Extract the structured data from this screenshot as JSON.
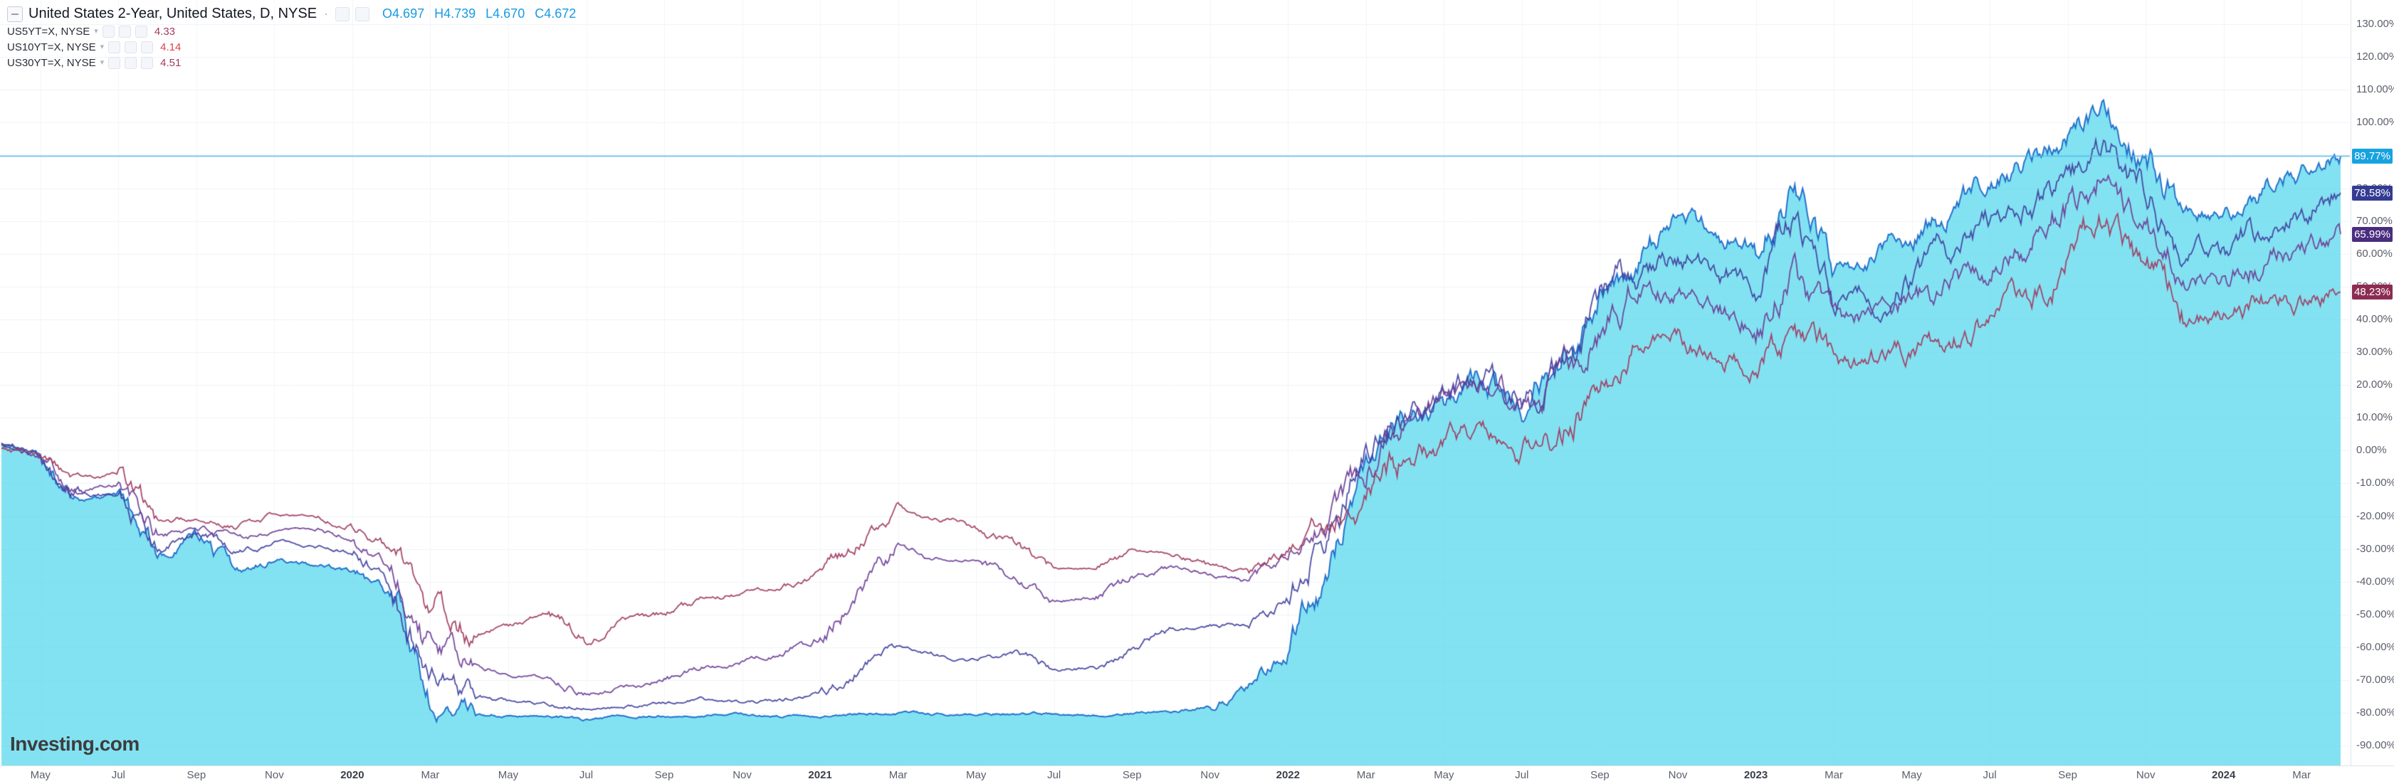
{
  "header": {
    "title": "United States 2-Year, United States, D, NYSE",
    "ohlc": {
      "o_label": "O",
      "o": "4.697",
      "h_label": "H",
      "h": "4.739",
      "l_label": "L",
      "l": "4.670",
      "c_label": "C",
      "c": "4.672"
    },
    "ohlc_color": "#189be4",
    "sub_series": [
      {
        "symbol": "US5YT=X, NYSE",
        "value": "4.33",
        "value_color": "#a23b5e"
      },
      {
        "symbol": "US10YT=X, NYSE",
        "value": "4.14",
        "value_color": "#e03e47"
      },
      {
        "symbol": "US30YT=X, NYSE",
        "value": "4.51",
        "value_color": "#a23b5e"
      }
    ]
  },
  "watermark": {
    "brand": "Investing",
    "tld": ".com"
  },
  "chart_data": {
    "type": "area+line",
    "title": "United States 2-Year, United States, D, NYSE — percent change",
    "x_interval": "monthly",
    "x_months": [
      "2019-04",
      "2019-05",
      "2019-06",
      "2019-07",
      "2019-08",
      "2019-09",
      "2019-10",
      "2019-11",
      "2019-12",
      "2020-01",
      "2020-02",
      "2020-03",
      "2020-04",
      "2020-05",
      "2020-06",
      "2020-07",
      "2020-08",
      "2020-09",
      "2020-10",
      "2020-11",
      "2020-12",
      "2021-01",
      "2021-02",
      "2021-03",
      "2021-04",
      "2021-05",
      "2021-06",
      "2021-07",
      "2021-08",
      "2021-09",
      "2021-10",
      "2021-11",
      "2021-12",
      "2022-01",
      "2022-02",
      "2022-03",
      "2022-04",
      "2022-05",
      "2022-06",
      "2022-07",
      "2022-08",
      "2022-09",
      "2022-10",
      "2022-11",
      "2022-12",
      "2023-01",
      "2023-02",
      "2023-03",
      "2023-04",
      "2023-05",
      "2023-06",
      "2023-07",
      "2023-08",
      "2023-09",
      "2023-10",
      "2023-11",
      "2023-12",
      "2024-01",
      "2024-02",
      "2024-03",
      "2024-04"
    ],
    "x_ticks": [
      {
        "pos": 1,
        "label": "May"
      },
      {
        "pos": 3,
        "label": "Jul"
      },
      {
        "pos": 5,
        "label": "Sep"
      },
      {
        "pos": 7,
        "label": "Nov"
      },
      {
        "pos": 9,
        "label": "2020",
        "year": true
      },
      {
        "pos": 11,
        "label": "Mar"
      },
      {
        "pos": 13,
        "label": "May"
      },
      {
        "pos": 15,
        "label": "Jul"
      },
      {
        "pos": 17,
        "label": "Sep"
      },
      {
        "pos": 19,
        "label": "Nov"
      },
      {
        "pos": 21,
        "label": "2021",
        "year": true
      },
      {
        "pos": 23,
        "label": "Mar"
      },
      {
        "pos": 25,
        "label": "May"
      },
      {
        "pos": 27,
        "label": "Jul"
      },
      {
        "pos": 29,
        "label": "Sep"
      },
      {
        "pos": 31,
        "label": "Nov"
      },
      {
        "pos": 33,
        "label": "2022",
        "year": true
      },
      {
        "pos": 35,
        "label": "Mar"
      },
      {
        "pos": 37,
        "label": "May"
      },
      {
        "pos": 39,
        "label": "Jul"
      },
      {
        "pos": 41,
        "label": "Sep"
      },
      {
        "pos": 43,
        "label": "Nov"
      },
      {
        "pos": 45,
        "label": "2023",
        "year": true
      },
      {
        "pos": 47,
        "label": "Mar"
      },
      {
        "pos": 49,
        "label": "May"
      },
      {
        "pos": 51,
        "label": "Jul"
      },
      {
        "pos": 53,
        "label": "Sep"
      },
      {
        "pos": 55,
        "label": "Nov"
      },
      {
        "pos": 57,
        "label": "2024",
        "year": true
      },
      {
        "pos": 59,
        "label": "Mar"
      }
    ],
    "y_axis": {
      "min": -90,
      "max": 130,
      "step": 10,
      "unit": "%"
    },
    "y_ticks": [
      "130.00%",
      "120.00%",
      "110.00%",
      "100.00%",
      "90.00%",
      "80.00%",
      "70.00%",
      "60.00%",
      "50.00%",
      "40.00%",
      "30.00%",
      "20.00%",
      "10.00%",
      "0.00%",
      "-10.00%",
      "-20.00%",
      "-30.00%",
      "-40.00%",
      "-50.00%",
      "-60.00%",
      "-70.00%",
      "-80.00%",
      "-90.00%"
    ],
    "current_price_line": {
      "value": 89.77,
      "color": "#53bcec"
    },
    "series": [
      {
        "name": "US2YT=X",
        "type": "area",
        "line_color": "#2472cc",
        "fill_color": "rgba(72,212,235,0.68)",
        "label_bg": "#17a2e0",
        "last_label": "89.77%",
        "values": [
          2,
          -2,
          -16,
          -14,
          -32,
          -26,
          -38,
          -33,
          -35,
          -37,
          -44,
          -78,
          -80,
          -81,
          -81,
          -82,
          -81.5,
          -81,
          -81,
          -80.5,
          -81,
          -81,
          -80.5,
          -80,
          -80.5,
          -80.5,
          -80,
          -80.5,
          -80.5,
          -80,
          -79.5,
          -78,
          -72,
          -62,
          -35,
          -5,
          8,
          14,
          22,
          13,
          28,
          48,
          60,
          70,
          66,
          62,
          80,
          55,
          58,
          65,
          75,
          82,
          88,
          95,
          103,
          90,
          74,
          72,
          80,
          86,
          89.77
        ]
      },
      {
        "name": "US5YT=X",
        "type": "line",
        "line_color": "#3f3f9e",
        "label_bg": "#343b92",
        "last_label": "78.58%",
        "values": [
          2,
          -2,
          -15,
          -13,
          -30,
          -25,
          -31,
          -28,
          -29,
          -31,
          -40,
          -68,
          -74,
          -76,
          -77,
          -79,
          -78,
          -77,
          -76,
          -77,
          -76,
          -74,
          -66,
          -60,
          -62,
          -64,
          -62,
          -67,
          -66,
          -61,
          -55,
          -54,
          -52,
          -45,
          -25,
          0,
          10,
          16,
          24,
          14,
          26,
          45,
          55,
          60,
          57,
          52,
          68,
          45,
          47,
          53,
          62,
          68,
          75,
          84,
          92,
          80,
          63,
          61,
          70,
          74,
          78.58
        ]
      },
      {
        "name": "US10YT=X",
        "type": "line",
        "line_color": "#6b3d96",
        "label_bg": "#4a2d7e",
        "last_label": "65.99%",
        "values": [
          2,
          -1,
          -12,
          -10,
          -27,
          -23,
          -27,
          -24,
          -24,
          -27,
          -36,
          -60,
          -66,
          -68,
          -69,
          -74,
          -72,
          -70,
          -66,
          -64,
          -62,
          -56,
          -42,
          -30,
          -33,
          -34,
          -39,
          -46,
          -45,
          -39,
          -36,
          -38,
          -40,
          -32,
          -20,
          -8,
          14,
          17,
          20,
          10,
          20,
          38,
          50,
          48,
          45,
          40,
          54,
          38,
          40,
          44,
          50,
          56,
          62,
          74,
          86,
          70,
          52,
          52,
          58,
          62,
          65.99
        ]
      },
      {
        "name": "US30YT=X",
        "type": "line",
        "line_color": "#a03a5f",
        "label_bg": "#8c2c52",
        "last_label": "48.23%",
        "values": [
          1,
          -2,
          -9,
          -7,
          -23,
          -20,
          -23,
          -20,
          -20,
          -23,
          -30,
          -45,
          -55,
          -53,
          -50,
          -58,
          -53,
          -50,
          -46,
          -43,
          -42,
          -38,
          -28,
          -19,
          -21,
          -24,
          -29,
          -36,
          -36,
          -32,
          -31,
          -35,
          -37,
          -30,
          -22,
          -14,
          -2,
          2,
          5,
          -2,
          6,
          22,
          34,
          32,
          30,
          26,
          36,
          26,
          28,
          30,
          34,
          40,
          46,
          58,
          70,
          56,
          40,
          40,
          44,
          46,
          48.23
        ]
      }
    ],
    "grid": true,
    "legend_position": "top-left"
  }
}
